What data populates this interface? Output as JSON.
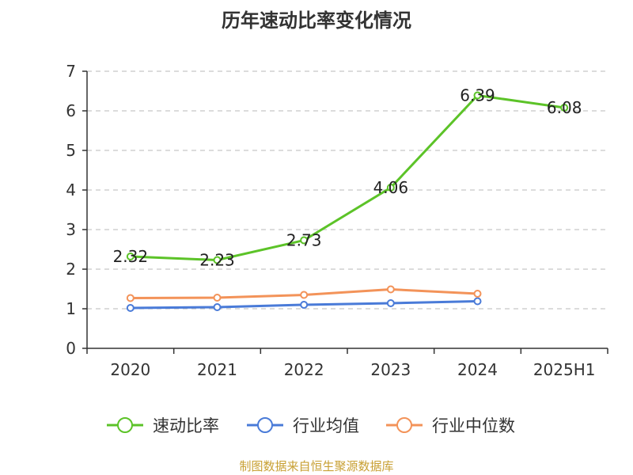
{
  "footer": {
    "source": "制图数据来自恒生聚源数据库"
  },
  "chart_data": {
    "type": "line",
    "title": "历年速动比率变化情况",
    "categories": [
      "2020",
      "2021",
      "2022",
      "2023",
      "2024",
      "2025H1"
    ],
    "ylim": [
      0,
      7
    ],
    "yticks": [
      0,
      1,
      2,
      3,
      4,
      5,
      6,
      7
    ],
    "grid": true,
    "legend_position": "bottom",
    "series": [
      {
        "name": "速动比率",
        "color": "#5cc328",
        "values": [
          2.32,
          2.23,
          2.73,
          4.06,
          6.39,
          6.08
        ],
        "data_labels": [
          "2.32",
          "2.23",
          "2.73",
          "4.06",
          "6.39",
          "6.08"
        ]
      },
      {
        "name": "行业均值",
        "color": "#4a7bd8",
        "values": [
          1.02,
          1.04,
          1.1,
          1.14,
          1.19,
          null
        ]
      },
      {
        "name": "行业中位数",
        "color": "#f39359",
        "values": [
          1.27,
          1.28,
          1.35,
          1.49,
          1.38,
          null
        ]
      }
    ]
  }
}
